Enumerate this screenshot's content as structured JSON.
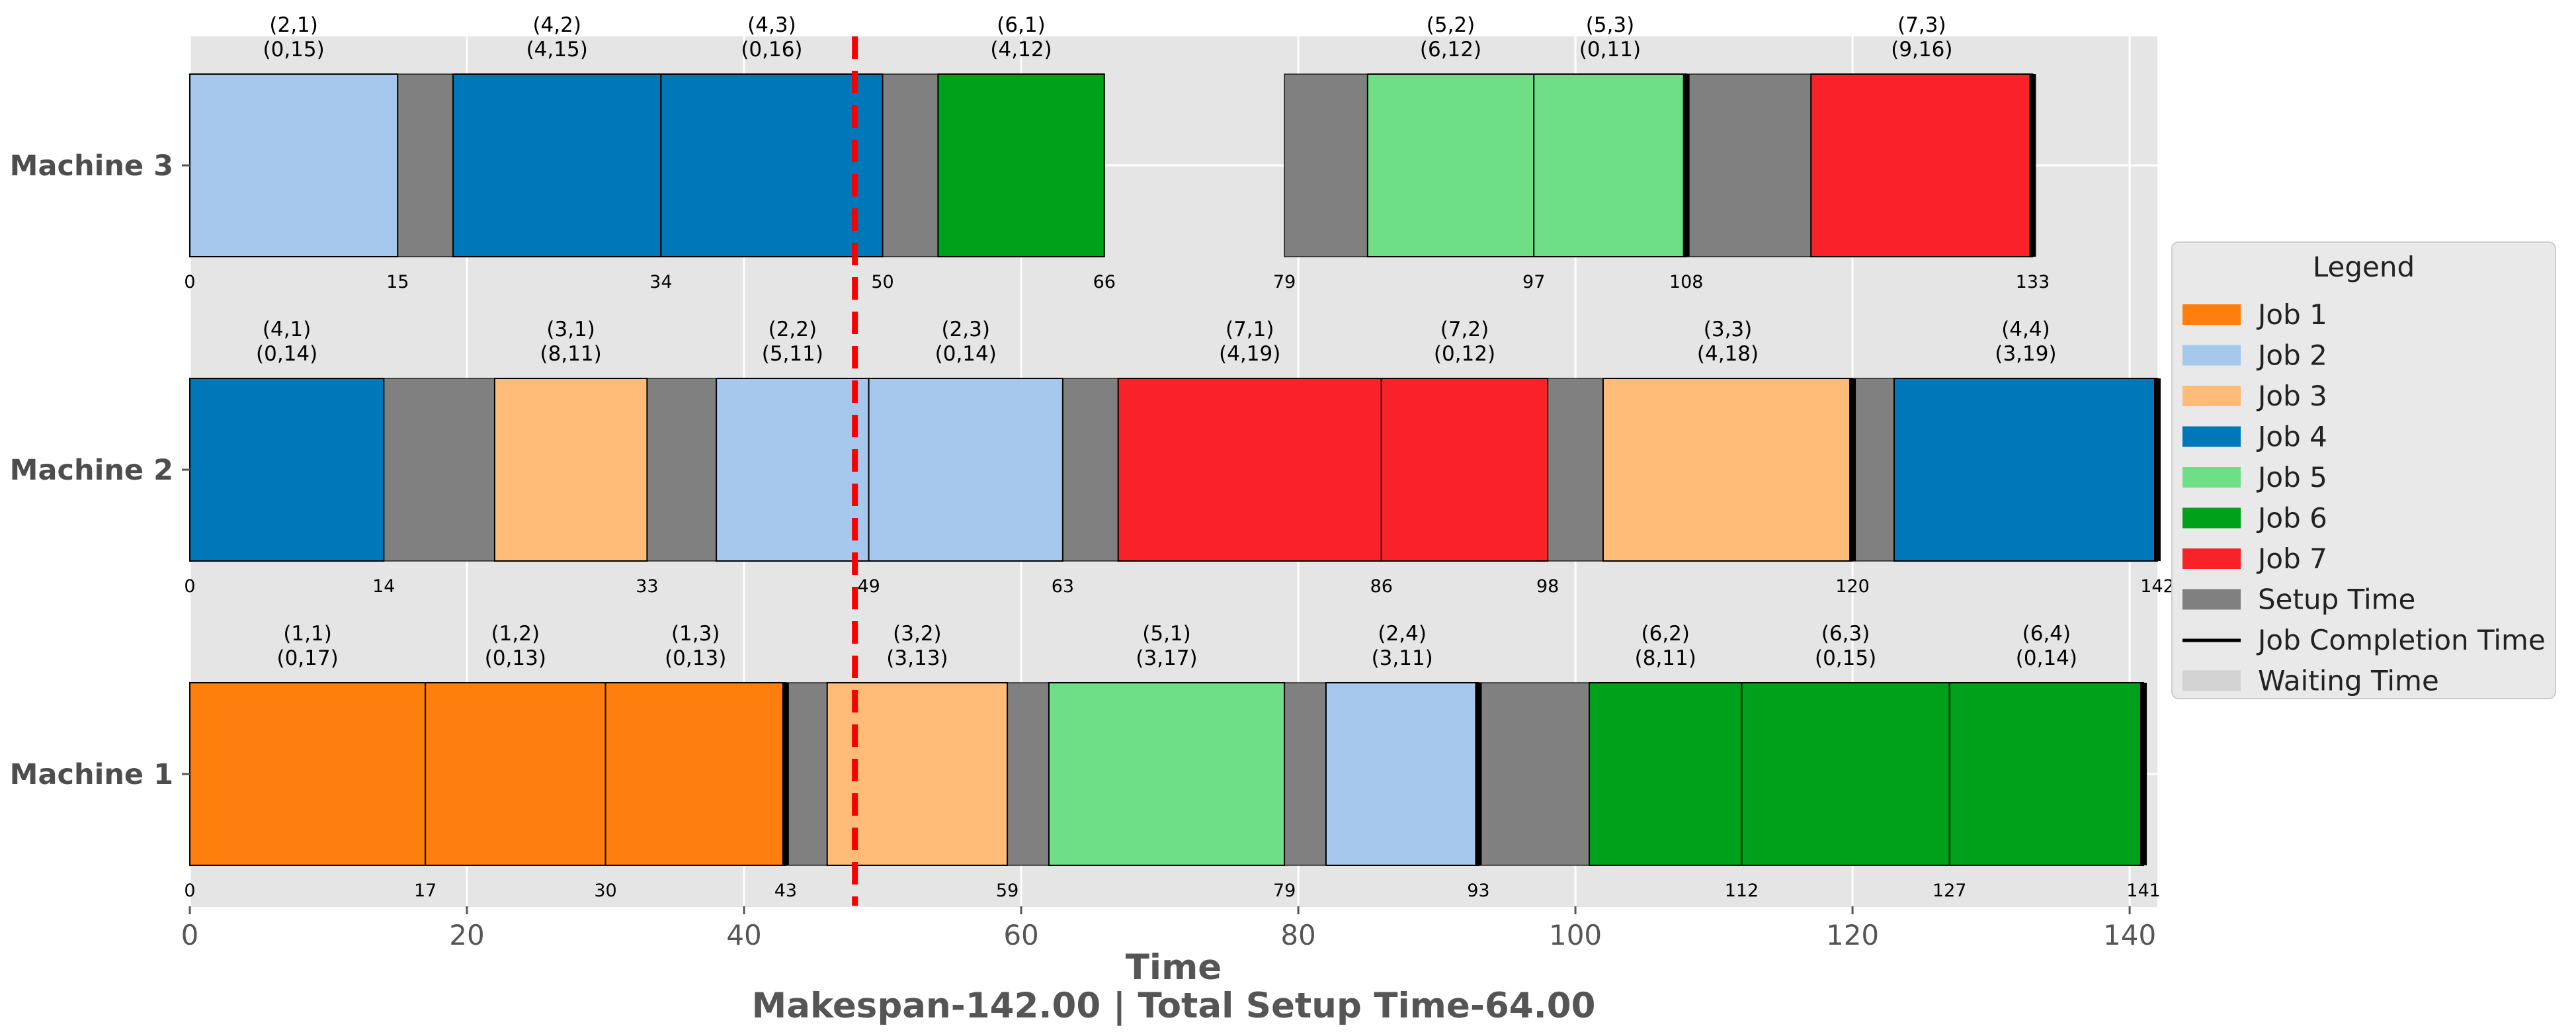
{
  "colors": {
    "job_1": "#ff7f0e",
    "job_2": "#a6c8ec",
    "job_3": "#ffbb78",
    "job_4": "#0077b8",
    "job_5": "#6fdf87",
    "job_6": "#00a11a",
    "job_7": "#f82228",
    "setup": "#808080",
    "waiting": "#d3d3d3",
    "current_time_line": "#f80000",
    "plot_bg": "#e5e5e5"
  },
  "chart_data": {
    "type": "gantt",
    "xlabel": "Time",
    "subtitle": "Makespan-142.00 | Total Setup Time-64.00",
    "xlim": [
      0,
      142
    ],
    "x_ticks": [
      0,
      20,
      40,
      60,
      80,
      100,
      120,
      140
    ],
    "grid": true,
    "current_time": 48,
    "legend": {
      "title": "Legend",
      "placement": "right",
      "entries": [
        {
          "label": "Job 1",
          "kind": "patch",
          "color": "#ff7f0e"
        },
        {
          "label": "Job 2",
          "kind": "patch",
          "color": "#a6c8ec"
        },
        {
          "label": "Job 3",
          "kind": "patch",
          "color": "#ffbb78"
        },
        {
          "label": "Job 4",
          "kind": "patch",
          "color": "#0077b8"
        },
        {
          "label": "Job 5",
          "kind": "patch",
          "color": "#6fdf87"
        },
        {
          "label": "Job 6",
          "kind": "patch",
          "color": "#00a11a"
        },
        {
          "label": "Job 7",
          "kind": "patch",
          "color": "#f82228"
        },
        {
          "label": "Setup Time",
          "kind": "patch",
          "color": "#808080"
        },
        {
          "label": "Job Completion Time",
          "kind": "line",
          "color": "#000000"
        },
        {
          "label": "Waiting Time",
          "kind": "patch",
          "color": "#d3d3d3"
        }
      ]
    },
    "machines": [
      {
        "name": "Machine 3",
        "start_labels": [
          "0",
          "15",
          "34",
          "50",
          "66",
          "79",
          "97",
          "108",
          "133"
        ],
        "start_values": [
          0,
          15,
          34,
          50,
          66,
          79,
          97,
          108,
          133
        ],
        "setups": [
          [
            15,
            19
          ],
          [
            50,
            54
          ],
          [
            79,
            85
          ],
          [
            108,
            117
          ]
        ],
        "ops": [
          {
            "job": 2,
            "label": "(2,1)",
            "params": "(0,15)",
            "start": 0,
            "end": 15
          },
          {
            "job": 4,
            "label": "(4,2)",
            "params": "(4,15)",
            "start": 19,
            "end": 34
          },
          {
            "job": 4,
            "label": "(4,3)",
            "params": "(0,16)",
            "start": 34,
            "end": 50
          },
          {
            "job": 6,
            "label": "(6,1)",
            "params": "(4,12)",
            "start": 54,
            "end": 66
          },
          {
            "job": 5,
            "label": "(5,2)",
            "params": "(6,12)",
            "start": 85,
            "end": 97
          },
          {
            "job": 5,
            "label": "(5,3)",
            "params": "(0,11)",
            "start": 97,
            "end": 108
          },
          {
            "job": 7,
            "label": "(7,3)",
            "params": "(9,16)",
            "start": 117,
            "end": 133
          }
        ],
        "completions": [
          108,
          133
        ]
      },
      {
        "name": "Machine 2",
        "start_labels": [
          "0",
          "14",
          "33",
          "49",
          "63",
          "86",
          "98",
          "120",
          "142"
        ],
        "start_values": [
          0,
          14,
          33,
          49,
          63,
          86,
          98,
          120,
          142
        ],
        "setups": [
          [
            14,
            22
          ],
          [
            33,
            38
          ],
          [
            63,
            67
          ],
          [
            98,
            102
          ],
          [
            120,
            123
          ]
        ],
        "ops": [
          {
            "job": 4,
            "label": "(4,1)",
            "params": "(0,14)",
            "start": 0,
            "end": 14
          },
          {
            "job": 3,
            "label": "(3,1)",
            "params": "(8,11)",
            "start": 22,
            "end": 33
          },
          {
            "job": 2,
            "label": "(2,2)",
            "params": "(5,11)",
            "start": 38,
            "end": 49
          },
          {
            "job": 2,
            "label": "(2,3)",
            "params": "(0,14)",
            "start": 49,
            "end": 63
          },
          {
            "job": 7,
            "label": "(7,1)",
            "params": "(4,19)",
            "start": 67,
            "end": 86
          },
          {
            "job": 7,
            "label": "(7,2)",
            "params": "(0,12)",
            "start": 86,
            "end": 98
          },
          {
            "job": 3,
            "label": "(3,3)",
            "params": "(4,18)",
            "start": 102,
            "end": 120
          },
          {
            "job": 4,
            "label": "(4,4)",
            "params": "(3,19)",
            "start": 123,
            "end": 142
          }
        ],
        "completions": [
          120,
          142
        ]
      },
      {
        "name": "Machine 1",
        "start_labels": [
          "0",
          "17",
          "30",
          "43",
          "59",
          "79",
          "93",
          "112",
          "127",
          "141"
        ],
        "start_values": [
          0,
          17,
          30,
          43,
          59,
          79,
          93,
          112,
          127,
          141
        ],
        "setups": [
          [
            43,
            46
          ],
          [
            59,
            62
          ],
          [
            79,
            82
          ],
          [
            93,
            101
          ]
        ],
        "ops": [
          {
            "job": 1,
            "label": "(1,1)",
            "params": "(0,17)",
            "start": 0,
            "end": 17
          },
          {
            "job": 1,
            "label": "(1,2)",
            "params": "(0,13)",
            "start": 17,
            "end": 30
          },
          {
            "job": 1,
            "label": "(1,3)",
            "params": "(0,13)",
            "start": 30,
            "end": 43
          },
          {
            "job": 3,
            "label": "(3,2)",
            "params": "(3,13)",
            "start": 46,
            "end": 59
          },
          {
            "job": 5,
            "label": "(5,1)",
            "params": "(3,17)",
            "start": 62,
            "end": 79
          },
          {
            "job": 2,
            "label": "(2,4)",
            "params": "(3,11)",
            "start": 82,
            "end": 93
          },
          {
            "job": 6,
            "label": "(6,2)",
            "params": "(8,11)",
            "start": 101,
            "end": 112
          },
          {
            "job": 6,
            "label": "(6,3)",
            "params": "(0,15)",
            "start": 112,
            "end": 127
          },
          {
            "job": 6,
            "label": "(6,4)",
            "params": "(0,14)",
            "start": 127,
            "end": 141
          }
        ],
        "completions": [
          43,
          93,
          141
        ]
      }
    ]
  }
}
